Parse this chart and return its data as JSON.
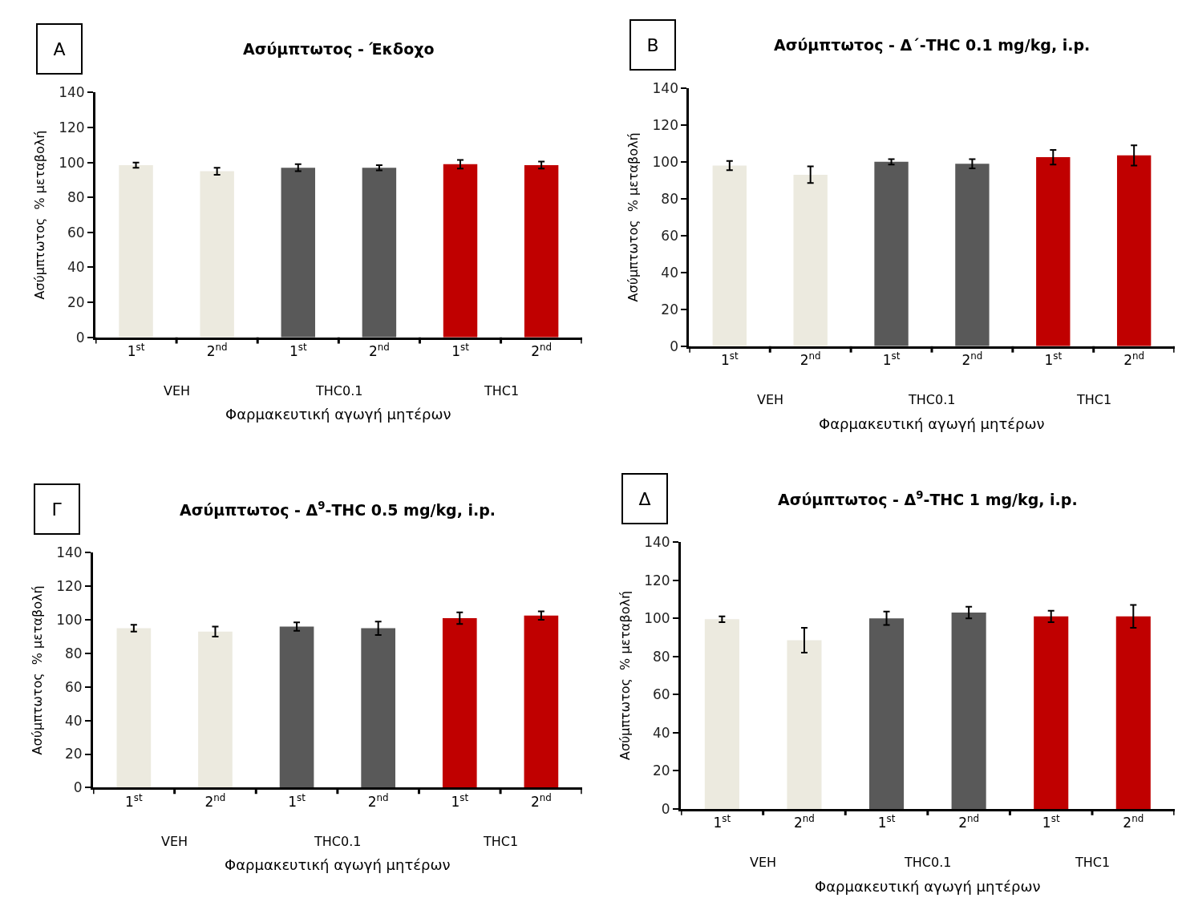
{
  "chart_data": [
    {
      "type": "bar",
      "title": "Ασύμπτωτος - Έκδοχο",
      "xlabel": "Φαρμακευτική αγωγή μητέρων",
      "ylabel": "Ασύμπτωτος  % μεταβολή",
      "annotations": [
        "A",
        "VEH",
        "THC0.1",
        "THC1"
      ],
      "categories": [
        "1$^{st}$",
        "2$^{nd}$",
        "1$^{st}$",
        "2$^{nd}$",
        "1$^{st}$",
        "2$^{nd}$"
      ],
      "values": [
        98.5,
        95,
        97,
        97,
        99,
        98.5
      ],
      "errors": [
        1.5,
        2,
        2,
        1.5,
        2.5,
        2
      ],
      "colors": [
        "#eceadf",
        "#eceadf",
        "#595959",
        "#595959",
        "#c00000",
        "#c00000"
      ],
      "ylim": [
        0,
        140
      ],
      "yticks": [
        0,
        20,
        40,
        60,
        80,
        100,
        120,
        140
      ]
    },
    {
      "type": "bar",
      "title": "Ασύμπτωτος - Δ´-THC 0.1 mg/kg, i.p.",
      "xlabel": "Φαρμακευτική αγωγή μητέρων",
      "ylabel": "Ασύμπτωτος  % μεταβολή",
      "annotations": [
        "B",
        "VEH",
        "THC0.1",
        "THC1"
      ],
      "categories": [
        "1$^{st}$",
        "2$^{nd}$",
        "1$^{st}$",
        "2$^{nd}$",
        "1$^{st}$",
        "2$^{nd}$"
      ],
      "values": [
        98,
        93,
        100,
        99,
        102.5,
        103.5
      ],
      "errors": [
        2.5,
        4.5,
        1.5,
        2.5,
        4,
        5.5
      ],
      "colors": [
        "#eceadf",
        "#eceadf",
        "#595959",
        "#595959",
        "#c00000",
        "#c00000"
      ],
      "ylim": [
        0,
        140
      ],
      "yticks": [
        0,
        20,
        40,
        60,
        80,
        100,
        120,
        140
      ]
    },
    {
      "type": "bar",
      "title": "Ασύμπτωτος - Δ$^{9}$-THC 0.5 mg/kg, i.p.",
      "xlabel": "Φαρμακευτική αγωγή μητέρων",
      "ylabel": "Ασύμπτωτος  % μεταβολή",
      "annotations": [
        "Γ",
        "VEH",
        "THC0.1",
        "THC1"
      ],
      "categories": [
        "1$^{st}$",
        "2$^{nd}$",
        "1$^{st}$",
        "2$^{nd}$",
        "1$^{st}$",
        "2$^{nd}$"
      ],
      "values": [
        95,
        93,
        96,
        95,
        101,
        102.5
      ],
      "errors": [
        2,
        3,
        2.5,
        4,
        3.5,
        2.5
      ],
      "colors": [
        "#eceadf",
        "#eceadf",
        "#595959",
        "#595959",
        "#c00000",
        "#c00000"
      ],
      "ylim": [
        0,
        140
      ],
      "yticks": [
        0,
        20,
        40,
        60,
        80,
        100,
        120,
        140
      ]
    },
    {
      "type": "bar",
      "title": "Ασύμπτωτος - Δ$^{9}$-THC 1 mg/kg, i.p.",
      "xlabel": "Φαρμακευτική αγωγή μητέρων",
      "ylabel": "Ασύμπτωτος  % μεταβολή",
      "annotations": [
        "Δ",
        "VEH",
        "THC0.1",
        "THC1"
      ],
      "categories": [
        "1$^{st}$",
        "2$^{nd}$",
        "1$^{st}$",
        "2$^{nd}$",
        "1$^{st}$",
        "2$^{nd}$"
      ],
      "values": [
        99.5,
        88.5,
        100,
        103,
        101,
        101
      ],
      "errors": [
        1.5,
        6.5,
        3.5,
        3,
        3,
        6
      ],
      "colors": [
        "#eceadf",
        "#eceadf",
        "#595959",
        "#595959",
        "#c00000",
        "#c00000"
      ],
      "ylim": [
        0,
        140
      ],
      "yticks": [
        0,
        20,
        40,
        60,
        80,
        100,
        120,
        140
      ]
    }
  ]
}
